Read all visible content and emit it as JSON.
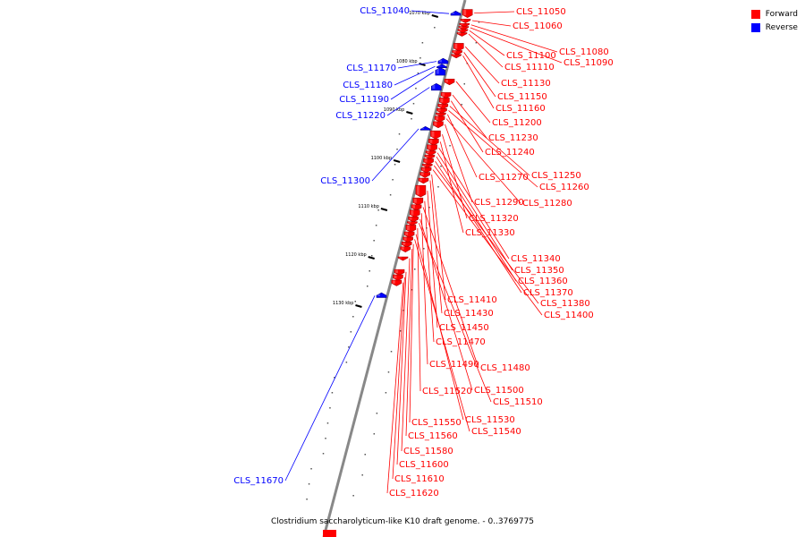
{
  "caption": "Clostridium saccharolyticum-like K10 draft genome. - 0..3769775",
  "legend": {
    "items": [
      {
        "label": "Forward",
        "color": "#ff0000"
      },
      {
        "label": "Reverse",
        "color": "#0000ff"
      }
    ]
  },
  "colors": {
    "forward": "#ff0000",
    "reverse": "#0000ff",
    "backbone": "#888888"
  },
  "ticks": [
    {
      "label": "1070 kbp",
      "position_kbp": 1070
    },
    {
      "label": "1080 kbp",
      "position_kbp": 1080
    },
    {
      "label": "1090 kbp",
      "position_kbp": 1090
    },
    {
      "label": "1100 kbp",
      "position_kbp": 1100
    },
    {
      "label": "1110 kbp",
      "position_kbp": 1110
    },
    {
      "label": "1120 kbp",
      "position_kbp": 1120
    },
    {
      "label": "1130 kbp",
      "position_kbp": 1130
    }
  ],
  "genes": [
    {
      "name": "CLS_11040",
      "strand": "reverse",
      "start_kbp": 1069.5,
      "end_kbp": 1070.2
    },
    {
      "name": "CLS_11050",
      "strand": "forward",
      "start_kbp": 1069.0,
      "end_kbp": 1070.5
    },
    {
      "name": "CLS_11060",
      "strand": "forward",
      "start_kbp": 1071.0,
      "end_kbp": 1071.6
    },
    {
      "name": "CLS_11080",
      "strand": "forward",
      "start_kbp": 1071.9,
      "end_kbp": 1072.4
    },
    {
      "name": "CLS_11090",
      "strand": "forward",
      "start_kbp": 1072.5,
      "end_kbp": 1073.0
    },
    {
      "name": "CLS_11100",
      "strand": "forward",
      "start_kbp": 1073.1,
      "end_kbp": 1073.7
    },
    {
      "name": "CLS_11110",
      "strand": "forward",
      "start_kbp": 1073.8,
      "end_kbp": 1074.2
    },
    {
      "name": "CLS_11130",
      "strand": "forward",
      "start_kbp": 1076.0,
      "end_kbp": 1077.4
    },
    {
      "name": "CLS_11150",
      "strand": "forward",
      "start_kbp": 1077.5,
      "end_kbp": 1078.2
    },
    {
      "name": "CLS_11160",
      "strand": "forward",
      "start_kbp": 1078.3,
      "end_kbp": 1078.8
    },
    {
      "name": "CLS_11170",
      "strand": "reverse",
      "start_kbp": 1079.3,
      "end_kbp": 1080.2
    },
    {
      "name": "CLS_11180",
      "strand": "reverse",
      "start_kbp": 1080.5,
      "end_kbp": 1081.0
    },
    {
      "name": "CLS_11190",
      "strand": "reverse",
      "start_kbp": 1081.2,
      "end_kbp": 1082.6
    },
    {
      "name": "CLS_11200",
      "strand": "forward",
      "start_kbp": 1083.4,
      "end_kbp": 1084.4
    },
    {
      "name": "CLS_11220",
      "strand": "reverse",
      "start_kbp": 1084.5,
      "end_kbp": 1085.7
    },
    {
      "name": "CLS_11230",
      "strand": "forward",
      "start_kbp": 1086.2,
      "end_kbp": 1087.2
    },
    {
      "name": "CLS_11240",
      "strand": "forward",
      "start_kbp": 1087.3,
      "end_kbp": 1088.5
    },
    {
      "name": "CLS_11250",
      "strand": "forward",
      "start_kbp": 1088.6,
      "end_kbp": 1089.4
    },
    {
      "name": "CLS_11260",
      "strand": "forward",
      "start_kbp": 1089.5,
      "end_kbp": 1090.3
    },
    {
      "name": "CLS_11270",
      "strand": "forward",
      "start_kbp": 1090.4,
      "end_kbp": 1091.0
    },
    {
      "name": "CLS_11280",
      "strand": "forward",
      "start_kbp": 1091.1,
      "end_kbp": 1092.1
    },
    {
      "name": "CLS_11290",
      "strand": "forward",
      "start_kbp": 1092.2,
      "end_kbp": 1093.3
    },
    {
      "name": "CLS_11300",
      "strand": "reverse",
      "start_kbp": 1093.4,
      "end_kbp": 1093.9
    },
    {
      "name": "CLS_11320",
      "strand": "forward",
      "start_kbp": 1094.1,
      "end_kbp": 1095.6
    },
    {
      "name": "CLS_11330",
      "strand": "forward",
      "start_kbp": 1095.8,
      "end_kbp": 1096.9
    },
    {
      "name": "CLS_11340",
      "strand": "forward",
      "start_kbp": 1097.0,
      "end_kbp": 1098.2
    },
    {
      "name": "CLS_11350",
      "strand": "forward",
      "start_kbp": 1098.3,
      "end_kbp": 1099.0
    },
    {
      "name": "CLS_11360",
      "strand": "forward",
      "start_kbp": 1099.1,
      "end_kbp": 1099.8
    },
    {
      "name": "CLS_11370",
      "strand": "forward",
      "start_kbp": 1099.9,
      "end_kbp": 1100.9
    },
    {
      "name": "CLS_11380",
      "strand": "forward",
      "start_kbp": 1101.0,
      "end_kbp": 1101.6
    },
    {
      "name": "CLS_11400",
      "strand": "forward",
      "start_kbp": 1101.7,
      "end_kbp": 1102.6
    },
    {
      "name": "CLS_11410",
      "strand": "forward",
      "start_kbp": 1102.7,
      "end_kbp": 1103.6
    },
    {
      "name": "CLS_11430",
      "strand": "forward",
      "start_kbp": 1103.9,
      "end_kbp": 1104.8
    },
    {
      "name": "CLS_11450",
      "strand": "forward",
      "start_kbp": 1105.4,
      "end_kbp": 1107.6
    },
    {
      "name": "CLS_11470",
      "strand": "forward",
      "start_kbp": 1108.0,
      "end_kbp": 1109.3
    },
    {
      "name": "CLS_11480",
      "strand": "forward",
      "start_kbp": 1109.4,
      "end_kbp": 1110.4
    },
    {
      "name": "CLS_11490",
      "strand": "forward",
      "start_kbp": 1110.5,
      "end_kbp": 1111.8
    },
    {
      "name": "CLS_11500",
      "strand": "forward",
      "start_kbp": 1111.9,
      "end_kbp": 1112.8
    },
    {
      "name": "CLS_11510",
      "strand": "forward",
      "start_kbp": 1112.9,
      "end_kbp": 1113.5
    },
    {
      "name": "CLS_11520",
      "strand": "forward",
      "start_kbp": 1113.6,
      "end_kbp": 1114.9
    },
    {
      "name": "CLS_11530",
      "strand": "forward",
      "start_kbp": 1115.0,
      "end_kbp": 1116.0
    },
    {
      "name": "CLS_11540",
      "strand": "forward",
      "start_kbp": 1116.1,
      "end_kbp": 1117.0
    },
    {
      "name": "CLS_11550",
      "strand": "forward",
      "start_kbp": 1117.1,
      "end_kbp": 1118.0
    },
    {
      "name": "CLS_11560",
      "strand": "forward",
      "start_kbp": 1118.1,
      "end_kbp": 1119.0
    },
    {
      "name": "CLS_11580",
      "strand": "forward",
      "start_kbp": 1120.2,
      "end_kbp": 1120.6
    },
    {
      "name": "CLS_11600",
      "strand": "forward",
      "start_kbp": 1122.8,
      "end_kbp": 1123.8
    },
    {
      "name": "CLS_11610",
      "strand": "forward",
      "start_kbp": 1123.9,
      "end_kbp": 1124.9
    },
    {
      "name": "CLS_11620",
      "strand": "forward",
      "start_kbp": 1125.0,
      "end_kbp": 1126.0
    },
    {
      "name": "CLS_11670",
      "strand": "reverse",
      "start_kbp": 1127.8,
      "end_kbp": 1128.6
    }
  ]
}
